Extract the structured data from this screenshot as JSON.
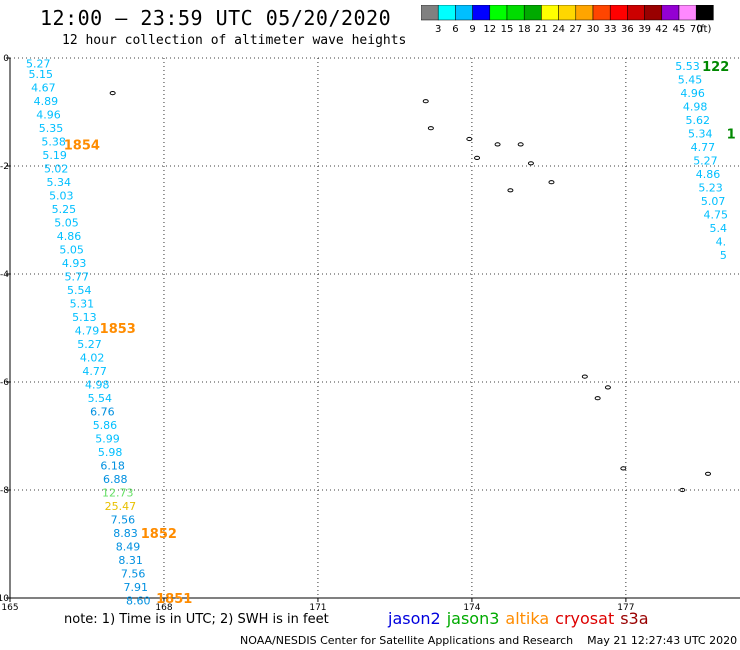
{
  "header": {
    "title": "12:00 – 23:59 UTC 05/20/2020",
    "subtitle": "12 hour collection of altimeter wave heights"
  },
  "color_scale": {
    "ticks": [
      "3",
      "6",
      "9",
      "12",
      "15",
      "18",
      "21",
      "24",
      "27",
      "30",
      "33",
      "36",
      "39",
      "42",
      "45",
      "70"
    ],
    "unit": "(ft)",
    "colors": [
      "#808080",
      "#00ffff",
      "#00bfff",
      "#0000ff",
      "#00ff00",
      "#00dd00",
      "#00aa00",
      "#ffff00",
      "#ffd700",
      "#ffa500",
      "#ff4500",
      "#ff0000",
      "#cc0000",
      "#990000",
      "#9400d3",
      "#ff88ff",
      "#000000"
    ]
  },
  "axes": {
    "x_ticks": [
      {
        "value": 165,
        "label": "165"
      },
      {
        "value": 168,
        "label": "168"
      },
      {
        "value": 171,
        "label": "171"
      },
      {
        "value": 174,
        "label": "174"
      },
      {
        "value": 177,
        "label": "177"
      }
    ],
    "y_ticks": [
      {
        "value": 0,
        "label": "0"
      },
      {
        "value": -2,
        "label": "-2"
      },
      {
        "value": -4,
        "label": "-4"
      },
      {
        "value": -6,
        "label": "-6"
      },
      {
        "value": -8,
        "label": "-8"
      },
      {
        "value": -10,
        "label": "-10"
      }
    ],
    "xlim": [
      165,
      179.2
    ],
    "ylim": [
      -10,
      0.2
    ],
    "grid": "dotted"
  },
  "track_left": {
    "points": [
      {
        "lon": 165.55,
        "lat": -0.1,
        "v": "5.27",
        "c": "#00bfff"
      },
      {
        "lon": 165.6,
        "lat": -0.3,
        "v": "5.15",
        "c": "#00bfff"
      },
      {
        "lon": 165.65,
        "lat": -0.55,
        "v": "4.67",
        "c": "#00bfff"
      },
      {
        "lon": 165.7,
        "lat": -0.8,
        "v": "4.89",
        "c": "#00bfff"
      },
      {
        "lon": 165.75,
        "lat": -1.05,
        "v": "4.96",
        "c": "#00bfff"
      },
      {
        "lon": 165.8,
        "lat": -1.3,
        "v": "5.35",
        "c": "#00bfff"
      },
      {
        "lon": 165.85,
        "lat": -1.55,
        "v": "5.38",
        "c": "#00bfff"
      },
      {
        "lon": 165.87,
        "lat": -1.8,
        "v": "5.19",
        "c": "#00bfff"
      },
      {
        "lon": 165.9,
        "lat": -2.05,
        "v": "5.02",
        "c": "#00bfff"
      },
      {
        "lon": 165.95,
        "lat": -2.3,
        "v": "5.34",
        "c": "#00bfff"
      },
      {
        "lon": 166.0,
        "lat": -2.55,
        "v": "5.03",
        "c": "#00bfff"
      },
      {
        "lon": 166.05,
        "lat": -2.8,
        "v": "5.25",
        "c": "#00bfff"
      },
      {
        "lon": 166.1,
        "lat": -3.05,
        "v": "5.05",
        "c": "#00bfff"
      },
      {
        "lon": 166.15,
        "lat": -3.3,
        "v": "4.86",
        "c": "#00bfff"
      },
      {
        "lon": 166.2,
        "lat": -3.55,
        "v": "5.05",
        "c": "#00bfff"
      },
      {
        "lon": 166.25,
        "lat": -3.8,
        "v": "4.93",
        "c": "#00bfff"
      },
      {
        "lon": 166.3,
        "lat": -4.05,
        "v": "5.77",
        "c": "#00bfff"
      },
      {
        "lon": 166.35,
        "lat": -4.3,
        "v": "5.54",
        "c": "#00bfff"
      },
      {
        "lon": 166.4,
        "lat": -4.55,
        "v": "5.31",
        "c": "#00bfff"
      },
      {
        "lon": 166.45,
        "lat": -4.8,
        "v": "5.13",
        "c": "#00bfff"
      },
      {
        "lon": 166.5,
        "lat": -5.05,
        "v": "4.79",
        "c": "#00bfff"
      },
      {
        "lon": 166.55,
        "lat": -5.3,
        "v": "5.27",
        "c": "#00bfff"
      },
      {
        "lon": 166.6,
        "lat": -5.55,
        "v": "4.02",
        "c": "#00bfff"
      },
      {
        "lon": 166.65,
        "lat": -5.8,
        "v": "4.77",
        "c": "#00bfff"
      },
      {
        "lon": 166.7,
        "lat": -6.05,
        "v": "4.98",
        "c": "#00bfff"
      },
      {
        "lon": 166.75,
        "lat": -6.3,
        "v": "5.54",
        "c": "#00bfff"
      },
      {
        "lon": 166.8,
        "lat": -6.55,
        "v": "6.76",
        "c": "#0090e0"
      },
      {
        "lon": 166.85,
        "lat": -6.8,
        "v": "5.86",
        "c": "#00bfff"
      },
      {
        "lon": 166.9,
        "lat": -7.05,
        "v": "5.99",
        "c": "#00bfff"
      },
      {
        "lon": 166.95,
        "lat": -7.3,
        "v": "5.98",
        "c": "#00bfff"
      },
      {
        "lon": 167.0,
        "lat": -7.55,
        "v": "6.18",
        "c": "#0090e0"
      },
      {
        "lon": 167.05,
        "lat": -7.8,
        "v": "6.88",
        "c": "#0090e0"
      },
      {
        "lon": 167.1,
        "lat": -8.05,
        "v": "12.73",
        "c": "#66e066"
      },
      {
        "lon": 167.15,
        "lat": -8.3,
        "v": "25.47",
        "c": "#e8c000"
      },
      {
        "lon": 167.2,
        "lat": -8.55,
        "v": "7.56",
        "c": "#0090e0"
      },
      {
        "lon": 167.25,
        "lat": -8.8,
        "v": "8.83",
        "c": "#0090e0"
      },
      {
        "lon": 167.3,
        "lat": -9.05,
        "v": "8.49",
        "c": "#0090e0"
      },
      {
        "lon": 167.35,
        "lat": -9.3,
        "v": "8.31",
        "c": "#0090e0"
      },
      {
        "lon": 167.4,
        "lat": -9.55,
        "v": "7.56",
        "c": "#0090e0"
      },
      {
        "lon": 167.45,
        "lat": -9.8,
        "v": "7.91",
        "c": "#0090e0"
      },
      {
        "lon": 167.5,
        "lat": -10.05,
        "v": "8.60",
        "c": "#0090e0"
      }
    ],
    "times": [
      {
        "lon": 166.4,
        "lat": -1.6,
        "v": "1854"
      },
      {
        "lon": 167.1,
        "lat": -5.0,
        "v": "1853"
      },
      {
        "lon": 167.9,
        "lat": -8.8,
        "v": "1852"
      },
      {
        "lon": 168.2,
        "lat": -10.0,
        "v": "1851"
      }
    ],
    "time_color": "#ff8c00"
  },
  "track_right": {
    "points": [
      {
        "lon": 178.2,
        "lat": -0.15,
        "v": "5.53",
        "c": "#00bfff"
      },
      {
        "lon": 178.25,
        "lat": -0.4,
        "v": "5.45",
        "c": "#00bfff"
      },
      {
        "lon": 178.3,
        "lat": -0.65,
        "v": "4.96",
        "c": "#00bfff"
      },
      {
        "lon": 178.35,
        "lat": -0.9,
        "v": "4.98",
        "c": "#00bfff"
      },
      {
        "lon": 178.4,
        "lat": -1.15,
        "v": "5.62",
        "c": "#00bfff"
      },
      {
        "lon": 178.45,
        "lat": -1.4,
        "v": "5.34",
        "c": "#00bfff"
      },
      {
        "lon": 178.5,
        "lat": -1.65,
        "v": "4.77",
        "c": "#00bfff"
      },
      {
        "lon": 178.55,
        "lat": -1.9,
        "v": "5.27",
        "c": "#00bfff"
      },
      {
        "lon": 178.6,
        "lat": -2.15,
        "v": "4.86",
        "c": "#00bfff"
      },
      {
        "lon": 178.65,
        "lat": -2.4,
        "v": "5.23",
        "c": "#00bfff"
      },
      {
        "lon": 178.7,
        "lat": -2.65,
        "v": "5.07",
        "c": "#00bfff"
      },
      {
        "lon": 178.75,
        "lat": -2.9,
        "v": "4.75",
        "c": "#00bfff"
      },
      {
        "lon": 178.8,
        "lat": -3.15,
        "v": "5.4",
        "c": "#00bfff"
      },
      {
        "lon": 178.85,
        "lat": -3.4,
        "v": "4.",
        "c": "#00bfff"
      },
      {
        "lon": 178.9,
        "lat": -3.65,
        "v": "5",
        "c": "#00bfff"
      }
    ],
    "times": [
      {
        "lon": 178.75,
        "lat": -0.15,
        "v": "122"
      },
      {
        "lon": 179.05,
        "lat": -1.4,
        "v": "1"
      }
    ],
    "time_color": "#008800"
  },
  "islands": [
    {
      "lon": 167.0,
      "lat": -0.65
    },
    {
      "lon": 173.1,
      "lat": -0.8
    },
    {
      "lon": 173.95,
      "lat": -1.5
    },
    {
      "lon": 173.2,
      "lat": -1.3
    },
    {
      "lon": 174.1,
      "lat": -1.85
    },
    {
      "lon": 174.5,
      "lat": -1.6
    },
    {
      "lon": 174.75,
      "lat": -2.45
    },
    {
      "lon": 174.95,
      "lat": -1.6
    },
    {
      "lon": 175.15,
      "lat": -1.95
    },
    {
      "lon": 175.55,
      "lat": -2.3
    },
    {
      "lon": 176.2,
      "lat": -5.9
    },
    {
      "lon": 176.45,
      "lat": -6.3
    },
    {
      "lon": 176.65,
      "lat": -6.1
    },
    {
      "lon": 176.95,
      "lat": -7.6
    },
    {
      "lon": 178.1,
      "lat": -8.0
    },
    {
      "lon": 178.6,
      "lat": -7.7
    }
  ],
  "footer": {
    "note": "note: 1) Time is in UTC; 2) SWH is in feet",
    "legend": [
      {
        "label": "jason2",
        "color": "#0000dd"
      },
      {
        "label": "jason3",
        "color": "#00aa00"
      },
      {
        "label": "altika",
        "color": "#ff8c00"
      },
      {
        "label": "cryosat",
        "color": "#dd0000"
      },
      {
        "label": "s3a",
        "color": "#990000"
      }
    ],
    "credit": "NOAA/NESDIS Center for Satellite Applications and Research",
    "timestamp": "May 21 12:27:43 UTC 2020"
  }
}
